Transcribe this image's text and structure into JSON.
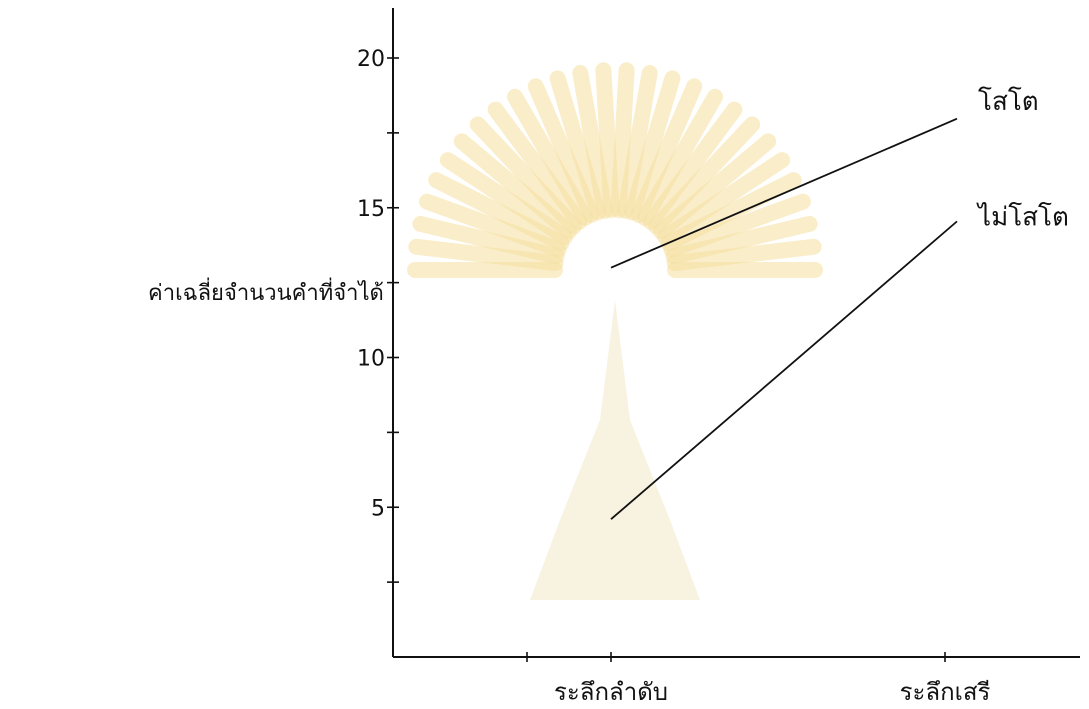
{
  "chart_data": {
    "type": "line",
    "ylabel": "ค่าเฉลี่ยจำนวนคำที่จำได้",
    "xlabel": "",
    "categories": [
      "ระลึกลำดับ",
      "ระลึกเสรี"
    ],
    "ylim": [
      0,
      21
    ],
    "yticks": [
      5,
      10,
      15,
      20
    ],
    "grid": false,
    "series": [
      {
        "name": "โสโต",
        "values": [
          13,
          17.8
        ]
      },
      {
        "name": "ไม่โสโต",
        "values": [
          4.6,
          14.2
        ]
      }
    ]
  },
  "colors": {
    "ink": "#111111",
    "watermark": "#f6dfa0"
  }
}
